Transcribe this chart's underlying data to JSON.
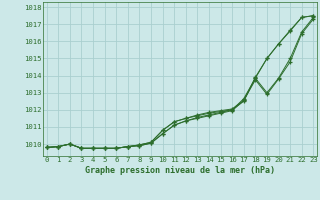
{
  "xlabel": "Graphe pression niveau de la mer (hPa)",
  "bg_color": "#cce8e8",
  "grid_color": "#aacfcf",
  "line_color": "#2d6e2d",
  "marker": "+",
  "xmin": 0,
  "xmax": 23,
  "ymin": 1009.3,
  "ymax": 1018.3,
  "yticks": [
    1010,
    1011,
    1012,
    1013,
    1014,
    1015,
    1016,
    1017,
    1018
  ],
  "xticks": [
    0,
    1,
    2,
    3,
    4,
    5,
    6,
    7,
    8,
    9,
    10,
    11,
    12,
    13,
    14,
    15,
    16,
    17,
    18,
    19,
    20,
    21,
    22,
    23
  ],
  "series": [
    [
      1009.8,
      1009.85,
      1010.0,
      1009.75,
      1009.75,
      1009.75,
      1009.75,
      1009.85,
      1009.95,
      1010.1,
      1010.8,
      1011.3,
      1011.5,
      1011.7,
      1011.85,
      1011.95,
      1012.05,
      1012.55,
      1013.85,
      1015.0,
      1015.85,
      1016.6,
      1017.4,
      1017.5
    ],
    [
      1009.8,
      1009.85,
      1010.0,
      1009.75,
      1009.75,
      1009.75,
      1009.75,
      1009.85,
      1009.95,
      1010.1,
      1010.8,
      1011.3,
      1011.5,
      1011.65,
      1011.8,
      1011.9,
      1012.0,
      1012.5,
      1013.9,
      1015.0,
      1015.85,
      1016.65,
      1017.4,
      1017.5
    ],
    [
      1009.8,
      1009.85,
      1010.0,
      1009.75,
      1009.75,
      1009.75,
      1009.75,
      1009.85,
      1009.9,
      1010.05,
      1010.6,
      1011.1,
      1011.35,
      1011.55,
      1011.7,
      1011.85,
      1012.0,
      1012.65,
      1013.85,
      1013.0,
      1013.85,
      1015.0,
      1016.55,
      1017.4
    ],
    [
      1009.8,
      1009.85,
      1010.0,
      1009.75,
      1009.75,
      1009.75,
      1009.75,
      1009.85,
      1009.9,
      1010.05,
      1010.6,
      1011.1,
      1011.35,
      1011.5,
      1011.65,
      1011.8,
      1011.95,
      1012.55,
      1013.75,
      1012.9,
      1013.8,
      1014.8,
      1016.45,
      1017.3
    ]
  ]
}
